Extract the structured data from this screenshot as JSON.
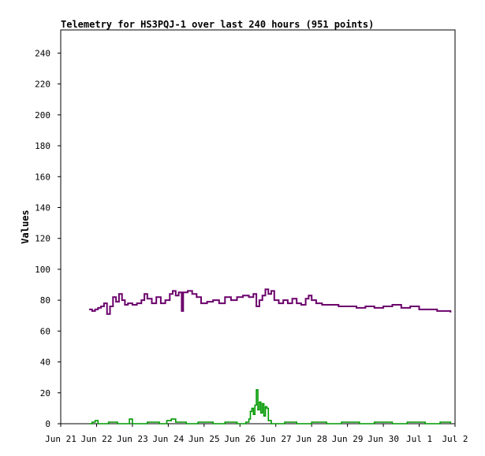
{
  "chart_data": {
    "type": "line",
    "title": "Telemetry for HS3PQJ-1 over last 240 hours (951 points)",
    "xlabel": "",
    "ylabel": "Values",
    "x_tick_labels": [
      "Jun 21",
      "Jun 22",
      "Jun 23",
      "Jun 24",
      "Jun 25",
      "Jun 26",
      "Jun 27",
      "Jun 28",
      "Jun 29",
      "Jun 30",
      "Jul 1",
      "Jul 2"
    ],
    "y_tick_labels": [
      "0",
      "20",
      "40",
      "60",
      "80",
      "100",
      "120",
      "140",
      "160",
      "180",
      "200",
      "220",
      "240"
    ],
    "xlim": [
      "2024-06-21",
      "2024-07-02"
    ],
    "ylim": [
      0,
      255
    ],
    "grid": false,
    "legend": "none",
    "series": [
      {
        "color": "#6b006b",
        "points": [
          [
            "2024-06-21 19:00",
            74
          ],
          [
            "2024-06-21 21:00",
            73
          ],
          [
            "2024-06-21 23:00",
            74
          ],
          [
            "2024-06-22 01:00",
            75
          ],
          [
            "2024-06-22 03:00",
            76
          ],
          [
            "2024-06-22 05:00",
            78
          ],
          [
            "2024-06-22 07:00",
            71
          ],
          [
            "2024-06-22 09:00",
            76
          ],
          [
            "2024-06-22 11:00",
            82
          ],
          [
            "2024-06-22 13:00",
            79
          ],
          [
            "2024-06-22 15:00",
            84
          ],
          [
            "2024-06-22 17:00",
            80
          ],
          [
            "2024-06-22 19:00",
            77
          ],
          [
            "2024-06-22 21:00",
            78
          ],
          [
            "2024-06-23 00:00",
            77
          ],
          [
            "2024-06-23 03:00",
            78
          ],
          [
            "2024-06-23 06:00",
            80
          ],
          [
            "2024-06-23 08:00",
            84
          ],
          [
            "2024-06-23 10:00",
            81
          ],
          [
            "2024-06-23 13:00",
            78
          ],
          [
            "2024-06-23 16:00",
            82
          ],
          [
            "2024-06-23 19:00",
            78
          ],
          [
            "2024-06-23 22:00",
            80
          ],
          [
            "2024-06-24 01:00",
            84
          ],
          [
            "2024-06-24 03:00",
            86
          ],
          [
            "2024-06-24 05:00",
            83
          ],
          [
            "2024-06-24 07:00",
            85
          ],
          [
            "2024-06-24 09:00",
            73
          ],
          [
            "2024-06-24 10:00",
            85
          ],
          [
            "2024-06-24 13:00",
            86
          ],
          [
            "2024-06-24 16:00",
            84
          ],
          [
            "2024-06-24 19:00",
            82
          ],
          [
            "2024-06-24 22:00",
            78
          ],
          [
            "2024-06-25 02:00",
            79
          ],
          [
            "2024-06-25 06:00",
            80
          ],
          [
            "2024-06-25 10:00",
            78
          ],
          [
            "2024-06-25 14:00",
            82
          ],
          [
            "2024-06-25 18:00",
            80
          ],
          [
            "2024-06-25 22:00",
            82
          ],
          [
            "2024-06-26 02:00",
            83
          ],
          [
            "2024-06-26 06:00",
            82
          ],
          [
            "2024-06-26 09:00",
            84
          ],
          [
            "2024-06-26 11:00",
            76
          ],
          [
            "2024-06-26 13:00",
            80
          ],
          [
            "2024-06-26 15:00",
            83
          ],
          [
            "2024-06-26 17:00",
            87
          ],
          [
            "2024-06-26 19:00",
            84
          ],
          [
            "2024-06-26 21:00",
            86
          ],
          [
            "2024-06-26 23:00",
            80
          ],
          [
            "2024-06-27 02:00",
            78
          ],
          [
            "2024-06-27 05:00",
            80
          ],
          [
            "2024-06-27 08:00",
            78
          ],
          [
            "2024-06-27 11:00",
            81
          ],
          [
            "2024-06-27 14:00",
            78
          ],
          [
            "2024-06-27 17:00",
            77
          ],
          [
            "2024-06-27 20:00",
            81
          ],
          [
            "2024-06-27 22:00",
            83
          ],
          [
            "2024-06-28 00:00",
            80
          ],
          [
            "2024-06-28 03:00",
            78
          ],
          [
            "2024-06-28 07:00",
            77
          ],
          [
            "2024-06-28 12:00",
            77
          ],
          [
            "2024-06-28 18:00",
            76
          ],
          [
            "2024-06-29 00:00",
            76
          ],
          [
            "2024-06-29 06:00",
            75
          ],
          [
            "2024-06-29 12:00",
            76
          ],
          [
            "2024-06-29 18:00",
            75
          ],
          [
            "2024-06-30 00:00",
            76
          ],
          [
            "2024-06-30 06:00",
            77
          ],
          [
            "2024-06-30 12:00",
            75
          ],
          [
            "2024-06-30 18:00",
            76
          ],
          [
            "2024-07-01 00:00",
            74
          ],
          [
            "2024-07-01 06:00",
            74
          ],
          [
            "2024-07-01 12:00",
            73
          ],
          [
            "2024-07-01 18:00",
            73
          ],
          [
            "2024-07-01 21:00",
            72
          ]
        ]
      },
      {
        "color": "#009900",
        "points": [
          [
            "2024-06-21 19:00",
            0
          ],
          [
            "2024-06-21 21:00",
            1
          ],
          [
            "2024-06-21 23:00",
            2
          ],
          [
            "2024-06-22 01:00",
            0
          ],
          [
            "2024-06-22 08:00",
            1
          ],
          [
            "2024-06-22 14:00",
            0
          ],
          [
            "2024-06-22 22:00",
            3
          ],
          [
            "2024-06-23 00:00",
            0
          ],
          [
            "2024-06-23 10:00",
            1
          ],
          [
            "2024-06-23 18:00",
            0
          ],
          [
            "2024-06-23 23:00",
            2
          ],
          [
            "2024-06-24 02:00",
            3
          ],
          [
            "2024-06-24 05:00",
            1
          ],
          [
            "2024-06-24 12:00",
            0
          ],
          [
            "2024-06-24 20:00",
            1
          ],
          [
            "2024-06-25 06:00",
            0
          ],
          [
            "2024-06-25 14:00",
            1
          ],
          [
            "2024-06-25 22:00",
            0
          ],
          [
            "2024-06-26 04:00",
            1
          ],
          [
            "2024-06-26 06:00",
            3
          ],
          [
            "2024-06-26 07:00",
            8
          ],
          [
            "2024-06-26 08:00",
            10
          ],
          [
            "2024-06-26 09:00",
            6
          ],
          [
            "2024-06-26 10:00",
            12
          ],
          [
            "2024-06-26 11:00",
            22
          ],
          [
            "2024-06-26 12:00",
            9
          ],
          [
            "2024-06-26 13:00",
            14
          ],
          [
            "2024-06-26 14:00",
            7
          ],
          [
            "2024-06-26 15:00",
            13
          ],
          [
            "2024-06-26 16:00",
            5
          ],
          [
            "2024-06-26 17:00",
            11
          ],
          [
            "2024-06-26 18:00",
            10
          ],
          [
            "2024-06-26 19:00",
            2
          ],
          [
            "2024-06-26 21:00",
            0
          ],
          [
            "2024-06-27 06:00",
            1
          ],
          [
            "2024-06-27 14:00",
            0
          ],
          [
            "2024-06-28 00:00",
            1
          ],
          [
            "2024-06-28 10:00",
            0
          ],
          [
            "2024-06-28 20:00",
            1
          ],
          [
            "2024-06-29 08:00",
            0
          ],
          [
            "2024-06-29 18:00",
            1
          ],
          [
            "2024-06-30 06:00",
            0
          ],
          [
            "2024-06-30 16:00",
            1
          ],
          [
            "2024-07-01 04:00",
            0
          ],
          [
            "2024-07-01 14:00",
            1
          ],
          [
            "2024-07-01 21:00",
            0
          ]
        ]
      }
    ]
  }
}
